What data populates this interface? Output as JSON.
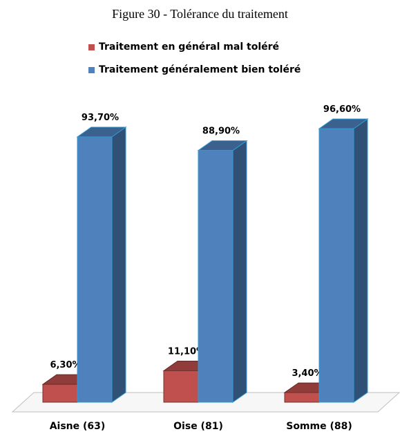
{
  "figure_title": "Figure 30 - Tolérance du traitement",
  "colors": {
    "series1": "#C0504D",
    "series2": "#4F81BD"
  },
  "chart_data": {
    "type": "bar",
    "title": "Figure 30 - Tolérance du traitement",
    "xlabel": "",
    "ylabel": "",
    "ylim": [
      0,
      100
    ],
    "grid": false,
    "legend_position": "top",
    "categories": [
      "Aisne (63)",
      "Oise (81)",
      "Somme (88)"
    ],
    "series": [
      {
        "name": "Traitement en général mal toléré",
        "values": [
          6.3,
          11.1,
          3.4
        ],
        "labels": [
          "6,30%",
          "11,10%",
          "3,40%"
        ]
      },
      {
        "name": "Traitement généralement bien toléré",
        "values": [
          93.7,
          88.9,
          96.6
        ],
        "labels": [
          "93,70%",
          "88,90%",
          "96,60%"
        ]
      }
    ]
  }
}
